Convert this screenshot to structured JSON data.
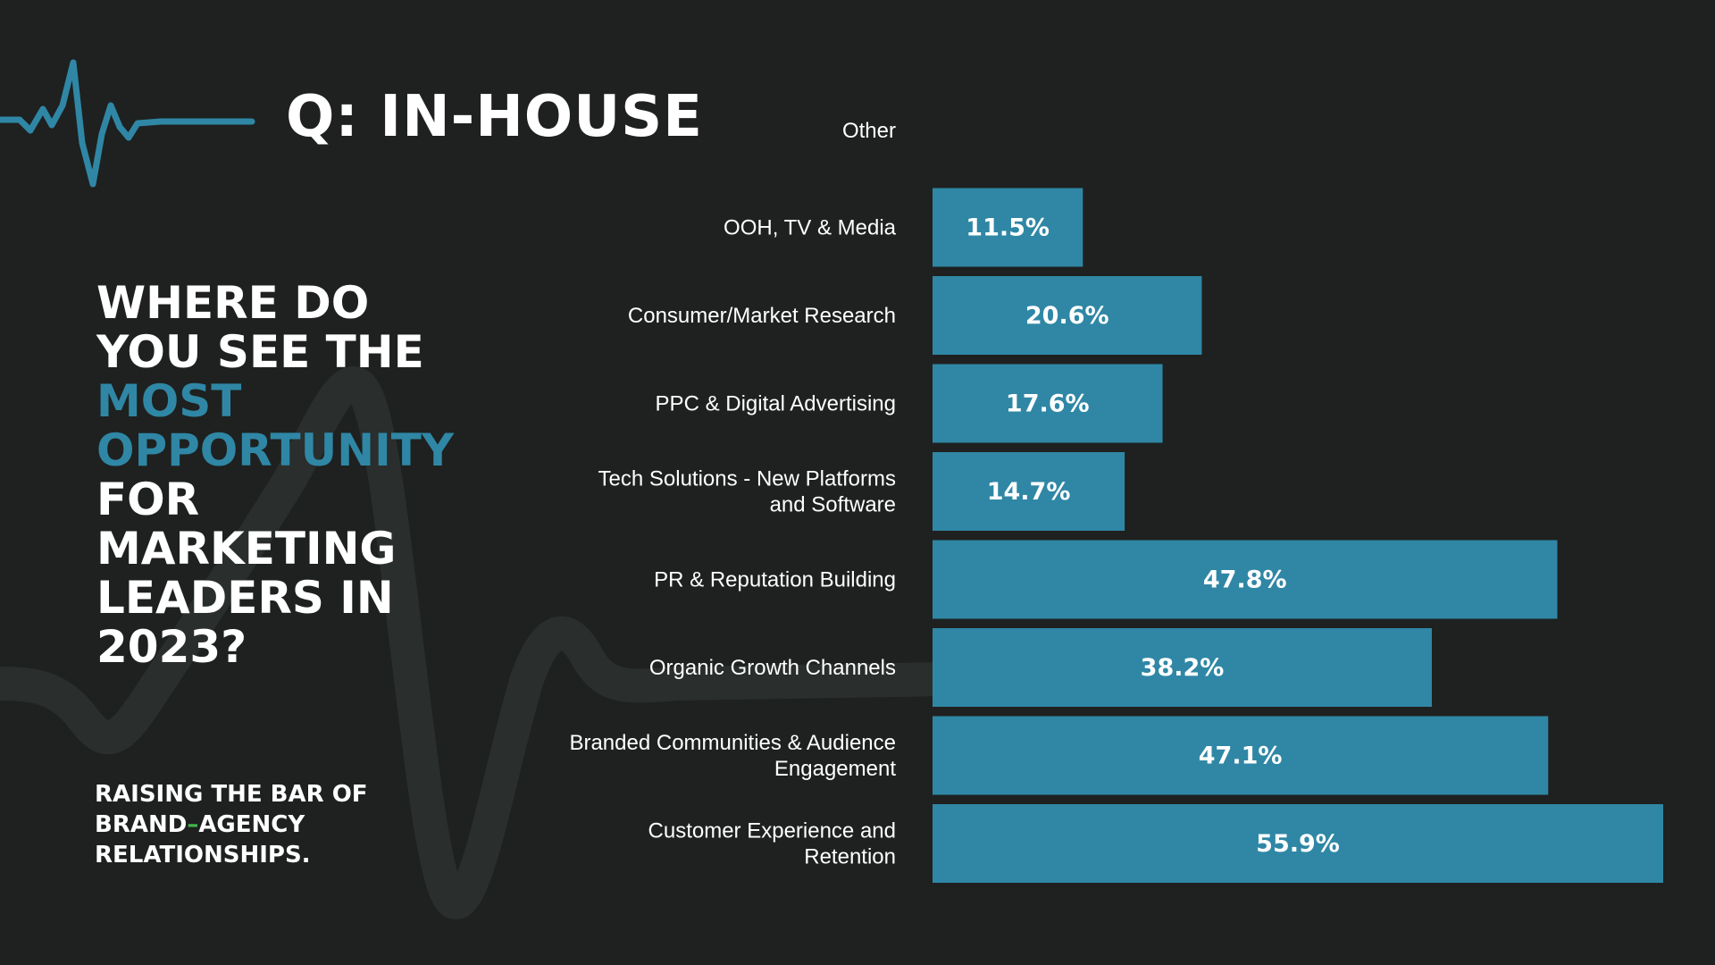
{
  "header": {
    "title": "Q: IN-HOUSE"
  },
  "question": {
    "line1": "WHERE DO",
    "line2": "YOU SEE THE",
    "line3": "MOST",
    "line4": "OPPORTUNITY",
    "line5": "FOR",
    "line6": "MARKETING",
    "line7": "LEADERS IN",
    "line8": "2023?"
  },
  "tagline": {
    "line1": "RAISING THE BAR OF",
    "line2_a": "BRAND",
    "line2_dash": "–",
    "line2_b": "AGENCY",
    "line3": "RELATIONSHIPS."
  },
  "colors": {
    "background": "#1e2120",
    "bar": "#2f87a5",
    "accent": "#2f87a5",
    "dash": "#3fb54a",
    "text": "#ffffff"
  },
  "chart_data": {
    "type": "bar",
    "orientation": "horizontal",
    "title": "Q: IN-HOUSE",
    "categories": [
      "Other",
      "OOH, TV & Media",
      "Consumer/Market Research",
      "PPC & Digital Advertising",
      "Tech Solutions - New Platforms and Software",
      "PR & Reputation Building",
      "Organic Growth Channels",
      "Branded Communities & Audience Engagement",
      "Customer Experience and Retention"
    ],
    "category_lines": [
      [
        "Other"
      ],
      [
        "OOH, TV & Media"
      ],
      [
        "Consumer/Market Research"
      ],
      [
        "PPC & Digital Advertising"
      ],
      [
        "Tech Solutions - New Platforms",
        "and Software"
      ],
      [
        "PR & Reputation Building"
      ],
      [
        "Organic Growth Channels"
      ],
      [
        "Branded Communities & Audience",
        "Engagement"
      ],
      [
        "Customer Experience and",
        "Retention"
      ]
    ],
    "values": [
      0,
      11.5,
      20.6,
      17.6,
      14.7,
      47.8,
      38.2,
      47.1,
      55.9
    ],
    "value_labels": [
      "",
      "11.5%",
      "20.6%",
      "17.6%",
      "14.7%",
      "47.8%",
      "38.2%",
      "47.1%",
      "55.9%"
    ],
    "unit": "%",
    "xlim": [
      0,
      56
    ],
    "xlabel": "",
    "ylabel": "",
    "grid": false,
    "legend": "none"
  }
}
